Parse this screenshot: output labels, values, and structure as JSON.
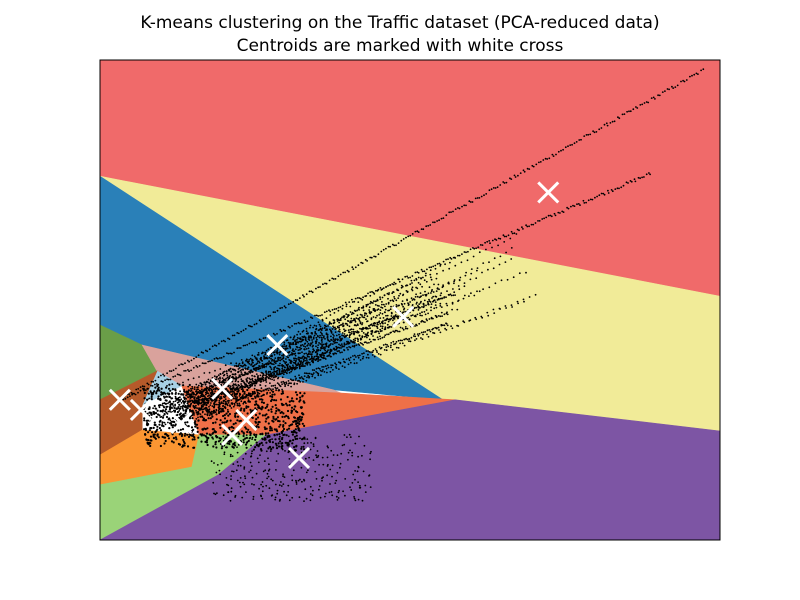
{
  "chart_data": {
    "type": "scatter",
    "title": "K-means clustering on the Traffic dataset (PCA-reduced data)",
    "subtitle": "Centroids are marked with white cross",
    "xlabel": "",
    "ylabel": "",
    "xlim": [
      0,
      100
    ],
    "ylim": [
      0,
      100
    ],
    "axes_ticks": "none",
    "grid": false,
    "legend": "none",
    "regions": [
      {
        "name": "red",
        "color": "#f06a6a",
        "polygon": [
          [
            0,
            100
          ],
          [
            100,
            100
          ],
          [
            100,
            50.8
          ],
          [
            0,
            75.8
          ]
        ]
      },
      {
        "name": "yellow",
        "color": "#f1eb98",
        "polygon": [
          [
            0,
            75.8
          ],
          [
            100,
            50.8
          ],
          [
            100,
            22.7
          ],
          [
            57.3,
            29.2
          ],
          [
            55.3,
            29.2
          ]
        ]
      },
      {
        "name": "dark-blue",
        "color": "#2a80b8",
        "polygon": [
          [
            0,
            75.8
          ],
          [
            55.3,
            29.2
          ],
          [
            37.6,
            31.3
          ],
          [
            6.8,
            40.6
          ],
          [
            0,
            44.8
          ]
        ]
      },
      {
        "name": "green",
        "color": "#6a9e48",
        "polygon": [
          [
            0,
            44.8
          ],
          [
            6.8,
            40.6
          ],
          [
            9.2,
            35.2
          ],
          [
            0,
            29.2
          ]
        ]
      },
      {
        "name": "pink",
        "color": "#d9a29c",
        "polygon": [
          [
            6.8,
            40.6
          ],
          [
            37.6,
            31.3
          ],
          [
            38.9,
            30.6
          ],
          [
            13.2,
            32.1
          ],
          [
            9.2,
            35.2
          ]
        ]
      },
      {
        "name": "light-blue",
        "color": "#a8d1e5",
        "polygon": [
          [
            9.2,
            35.2
          ],
          [
            13.2,
            32.1
          ],
          [
            6.8,
            28.1
          ]
        ]
      },
      {
        "name": "brown",
        "color": "#b55a2a",
        "polygon": [
          [
            0,
            29.2
          ],
          [
            9.2,
            35.2
          ],
          [
            6.8,
            28.1
          ],
          [
            6.8,
            22.9
          ],
          [
            0,
            17.7
          ]
        ]
      },
      {
        "name": "orange-red",
        "color": "#ef7048",
        "polygon": [
          [
            38.9,
            30.6
          ],
          [
            57.3,
            29.2
          ],
          [
            26.8,
            21.9
          ],
          [
            16,
            21.9
          ],
          [
            13.2,
            32.1
          ]
        ]
      },
      {
        "name": "orange",
        "color": "#fb9632",
        "polygon": [
          [
            0,
            17.7
          ],
          [
            6.8,
            22.9
          ],
          [
            16,
            21.9
          ],
          [
            14.8,
            15.2
          ],
          [
            0,
            11.5
          ]
        ]
      },
      {
        "name": "light-green",
        "color": "#9ad378",
        "polygon": [
          [
            0,
            11.5
          ],
          [
            14.8,
            15.2
          ],
          [
            16,
            21.9
          ],
          [
            26.8,
            21.9
          ],
          [
            19,
            13.5
          ],
          [
            0,
            0
          ]
        ]
      },
      {
        "name": "purple",
        "color": "#7d55a4",
        "polygon": [
          [
            0,
            0
          ],
          [
            19,
            13.5
          ],
          [
            26.8,
            21.9
          ],
          [
            57.3,
            29.2
          ],
          [
            100,
            22.7
          ],
          [
            100,
            0
          ]
        ]
      }
    ],
    "centroids": [
      {
        "x": 72.3,
        "y": 72.4
      },
      {
        "x": 48.9,
        "y": 46.5
      },
      {
        "x": 28.6,
        "y": 40.6
      },
      {
        "x": 19.7,
        "y": 31.5
      },
      {
        "x": 3.2,
        "y": 29.2
      },
      {
        "x": 6.6,
        "y": 27.1
      },
      {
        "x": 13.1,
        "y": 24.4
      },
      {
        "x": 23.6,
        "y": 25.0
      },
      {
        "x": 21.3,
        "y": 21.9
      },
      {
        "x": 32.1,
        "y": 17.1
      }
    ],
    "points_description_lines": [
      {
        "from": [
          3.2,
          29.2
        ],
        "to": [
          97.6,
          98.1
        ]
      },
      {
        "from": [
          3.2,
          29.2
        ],
        "to": [
          89.1,
          76.5
        ]
      },
      {
        "from": [
          10,
          28
        ],
        "to": [
          57.7,
          51.5
        ]
      },
      {
        "from": [
          10,
          26
        ],
        "to": [
          56.5,
          47.5
        ]
      },
      {
        "from": [
          10,
          24
        ],
        "to": [
          56.5,
          45.2
        ]
      }
    ]
  }
}
